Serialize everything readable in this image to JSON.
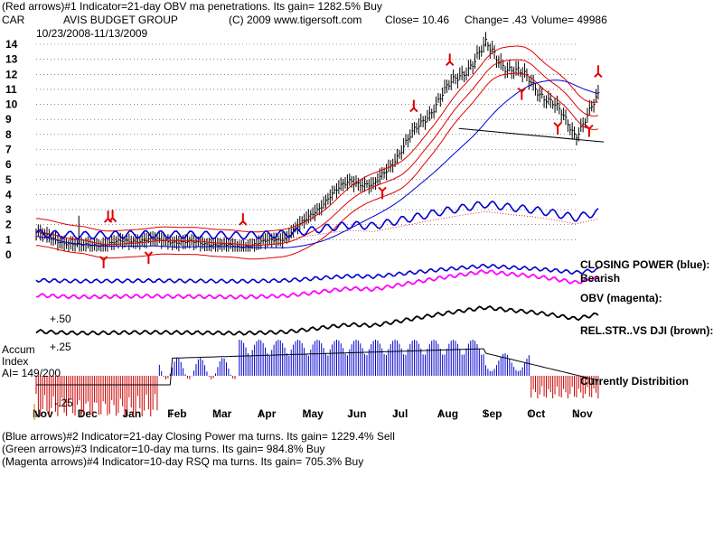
{
  "header": {
    "line1": "(Red arrows)#1 Indicator=21-day OBV ma penetrations.  Its gain= 1282.5% Buy",
    "ticker": "CAR",
    "company": "AVIS BUDGET GROUP",
    "copyright": "(C) 2009 www.tigersoft.com",
    "close": "Close=  10.46",
    "change": "Change=  .43",
    "volume": "Volume=  49986",
    "date_range": "10/23/2008-11/13/2009"
  },
  "footer": {
    "line1": "(Blue arrows)#2 Indicator=21-day Closing Power ma turns.  Its gain= 1229.4% Sell",
    "line2": "(Green arrows)#3 Indicator=10-day ma turns.  Its gain= 984.8% Buy",
    "line3": "(Magenta arrows)#4 Indicator=10-day RSQ ma turns.  Its gain= 705.3% Buy"
  },
  "panel_labels": {
    "closing_power": "CLOSING POWER (blue):",
    "bearish": "Bearish",
    "obv": "OBV (magenta):",
    "rel_str": "REL.STR..VS DJI (brown):",
    "currently": "Currently Distribition",
    "accum_title": "Accum",
    "accum_index": "Index",
    "ai": "AI= 149/200",
    "accum_plus50": "+.50",
    "accum_plus25": "+.25",
    "accum_minus25": "-.25"
  },
  "chart_data": {
    "type": "line",
    "title": "AVIS BUDGET GROUP",
    "price_axis": {
      "ticks": [
        0,
        1,
        2,
        3,
        4,
        5,
        6,
        7,
        8,
        9,
        10,
        11,
        12,
        13,
        14
      ],
      "ylim": [
        0,
        14
      ]
    },
    "x_months": [
      "Nov",
      "Dec",
      "Jan",
      "Feb",
      "Mar",
      "Apr",
      "May",
      "Jun",
      "Jul",
      "Aug",
      "Sep",
      "Oct",
      "Nov"
    ],
    "price_close_approx": {
      "x": [
        0,
        0.5,
        1,
        1.5,
        2,
        2.5,
        3,
        3.5,
        4,
        4.5,
        5,
        5.5,
        6,
        6.5,
        7,
        7.5,
        8,
        8.5,
        9,
        9.5,
        10,
        10.5,
        11,
        11.5,
        12,
        12.5
      ],
      "y": [
        1.5,
        0.9,
        0.6,
        0.7,
        0.9,
        1.0,
        0.9,
        0.8,
        0.7,
        0.5,
        0.8,
        1.1,
        2.3,
        3.8,
        5.0,
        4.5,
        6.5,
        8.5,
        10.5,
        12.2,
        13.8,
        12.5,
        11.5,
        10.0,
        8.0,
        10.4
      ]
    },
    "red_arrows_down_month_x": [
      1.5,
      2.5,
      7.7,
      10.8,
      11.6,
      12.3
    ],
    "red_arrows_up_month_x": [
      1.6,
      1.7,
      4.6,
      8.4,
      9.2,
      12.5
    ],
    "grid": true,
    "colors": {
      "price": "#000000",
      "ma_red": "#e00000",
      "ma_blue": "#0000cc",
      "closing_power": "#0000cc",
      "obv": "#ff00ff",
      "rel_str": "#000000",
      "accum_pos": "#0000cc",
      "accum_neg": "#cc0000"
    }
  }
}
